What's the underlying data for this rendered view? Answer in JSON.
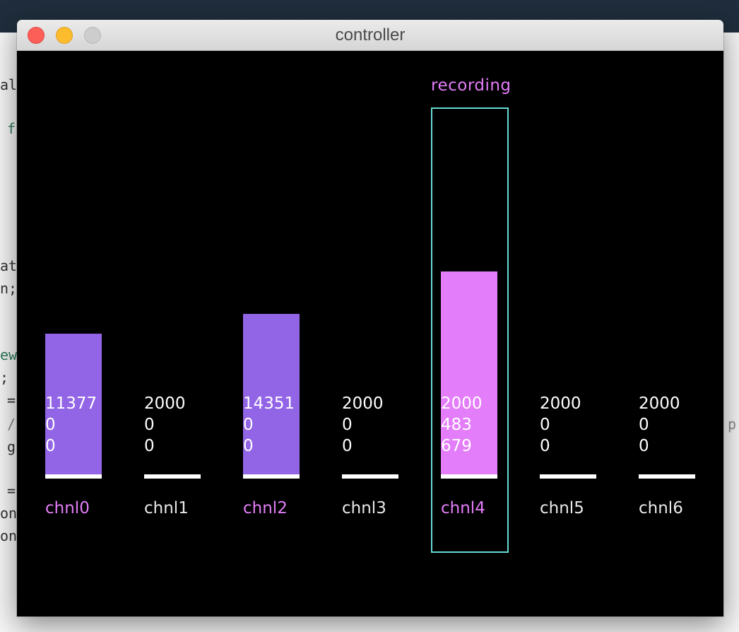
{
  "window": {
    "title": "controller",
    "controls": {
      "close_icon": "close-dot",
      "minimize_icon": "minimize-dot",
      "zoom_icon": "zoom-dot"
    }
  },
  "background_code": {
    "lines": [
      "al",
      "f",
      "at",
      "n;",
      "ew",
      ";",
      "=",
      "/",
      "g",
      "=",
      "on",
      "on",
      "p"
    ]
  },
  "recording": {
    "label": "recording",
    "channel": "chnl4"
  },
  "colors": {
    "bar_default": "#9264e6",
    "bar_recording": "#e47df9",
    "highlight_label": "#e47df9",
    "label_default": "#e9e9e9",
    "recording_box": "#66dbd5",
    "baseline": "#ffffff"
  },
  "chart_data": {
    "type": "bar",
    "categories": [
      "chnl0",
      "chnl1",
      "chnl2",
      "chnl3",
      "chnl4",
      "chnl5",
      "chnl6"
    ],
    "values": [
      [
        "11377",
        "0",
        "0"
      ],
      [
        "2000",
        "0",
        "0"
      ],
      [
        "14351",
        "0",
        "0"
      ],
      [
        "2000",
        "0",
        "0"
      ],
      [
        "2000",
        "483",
        "679"
      ],
      [
        "2000",
        "0",
        "0"
      ],
      [
        "2000",
        "0",
        "0"
      ]
    ],
    "levels": [
      0.5,
      0,
      0.57,
      0,
      0.72,
      0,
      0
    ],
    "highlighted": [
      true,
      false,
      true,
      false,
      true,
      false,
      false
    ],
    "bar_colors": [
      "#9264e6",
      null,
      "#9264e6",
      null,
      "#e47df9",
      null,
      null
    ]
  }
}
